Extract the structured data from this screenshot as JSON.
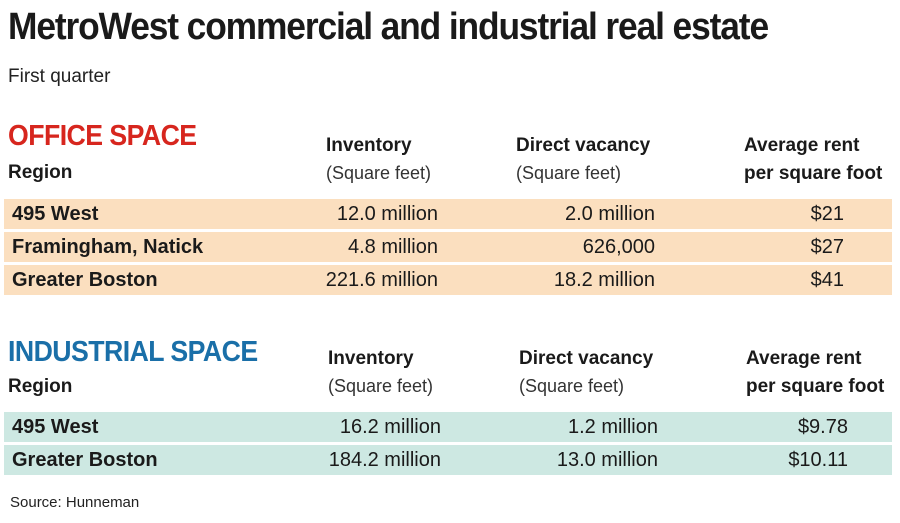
{
  "title": "MetroWest commercial and industrial real estate",
  "subtitle": "First quarter",
  "columns": {
    "region": "Region",
    "inventory": "Inventory",
    "inventory_unit": "(Square feet)",
    "vacancy": "Direct vacancy",
    "vacancy_unit": "(Square feet)",
    "rent_line1": "Average rent",
    "rent_line2": "per square foot"
  },
  "office": {
    "title": "OFFICE SPACE",
    "title_color": "#d7261e",
    "row_color": "#fbdfbf",
    "rows": [
      {
        "region": "495 West",
        "inventory": "12.0 million",
        "vacancy": "2.0 million",
        "rent": "$21"
      },
      {
        "region": "Framingham, Natick",
        "inventory": "4.8 million",
        "vacancy": "626,000",
        "rent": "$27"
      },
      {
        "region": "Greater Boston",
        "inventory": "221.6 million",
        "vacancy": "18.2 million",
        "rent": "$41"
      }
    ]
  },
  "industrial": {
    "title": "INDUSTRIAL SPACE",
    "title_color": "#1a6fa8",
    "row_color": "#cde8e2",
    "rows": [
      {
        "region": "495 West",
        "inventory": "16.2 million",
        "vacancy": "1.2 million",
        "rent": "$9.78"
      },
      {
        "region": "Greater Boston",
        "inventory": "184.2 million",
        "vacancy": "13.0 million",
        "rent": "$10.11"
      }
    ]
  },
  "source": "Source: Hunneman",
  "chart_data": {
    "type": "table",
    "title": "MetroWest commercial and industrial real estate",
    "subtitle": "First quarter",
    "columns": [
      "Region",
      "Inventory (Square feet)",
      "Direct vacancy (Square feet)",
      "Average rent per square foot"
    ],
    "tables": [
      {
        "name": "OFFICE SPACE",
        "rows": [
          [
            "495 West",
            "12.0 million",
            "2.0 million",
            "$21"
          ],
          [
            "Framingham, Natick",
            "4.8 million",
            "626,000",
            "$27"
          ],
          [
            "Greater Boston",
            "221.6 million",
            "18.2 million",
            "$41"
          ]
        ]
      },
      {
        "name": "INDUSTRIAL SPACE",
        "rows": [
          [
            "495 West",
            "16.2 million",
            "1.2 million",
            "$9.78"
          ],
          [
            "Greater Boston",
            "184.2 million",
            "13.0 million",
            "$10.11"
          ]
        ]
      }
    ]
  }
}
